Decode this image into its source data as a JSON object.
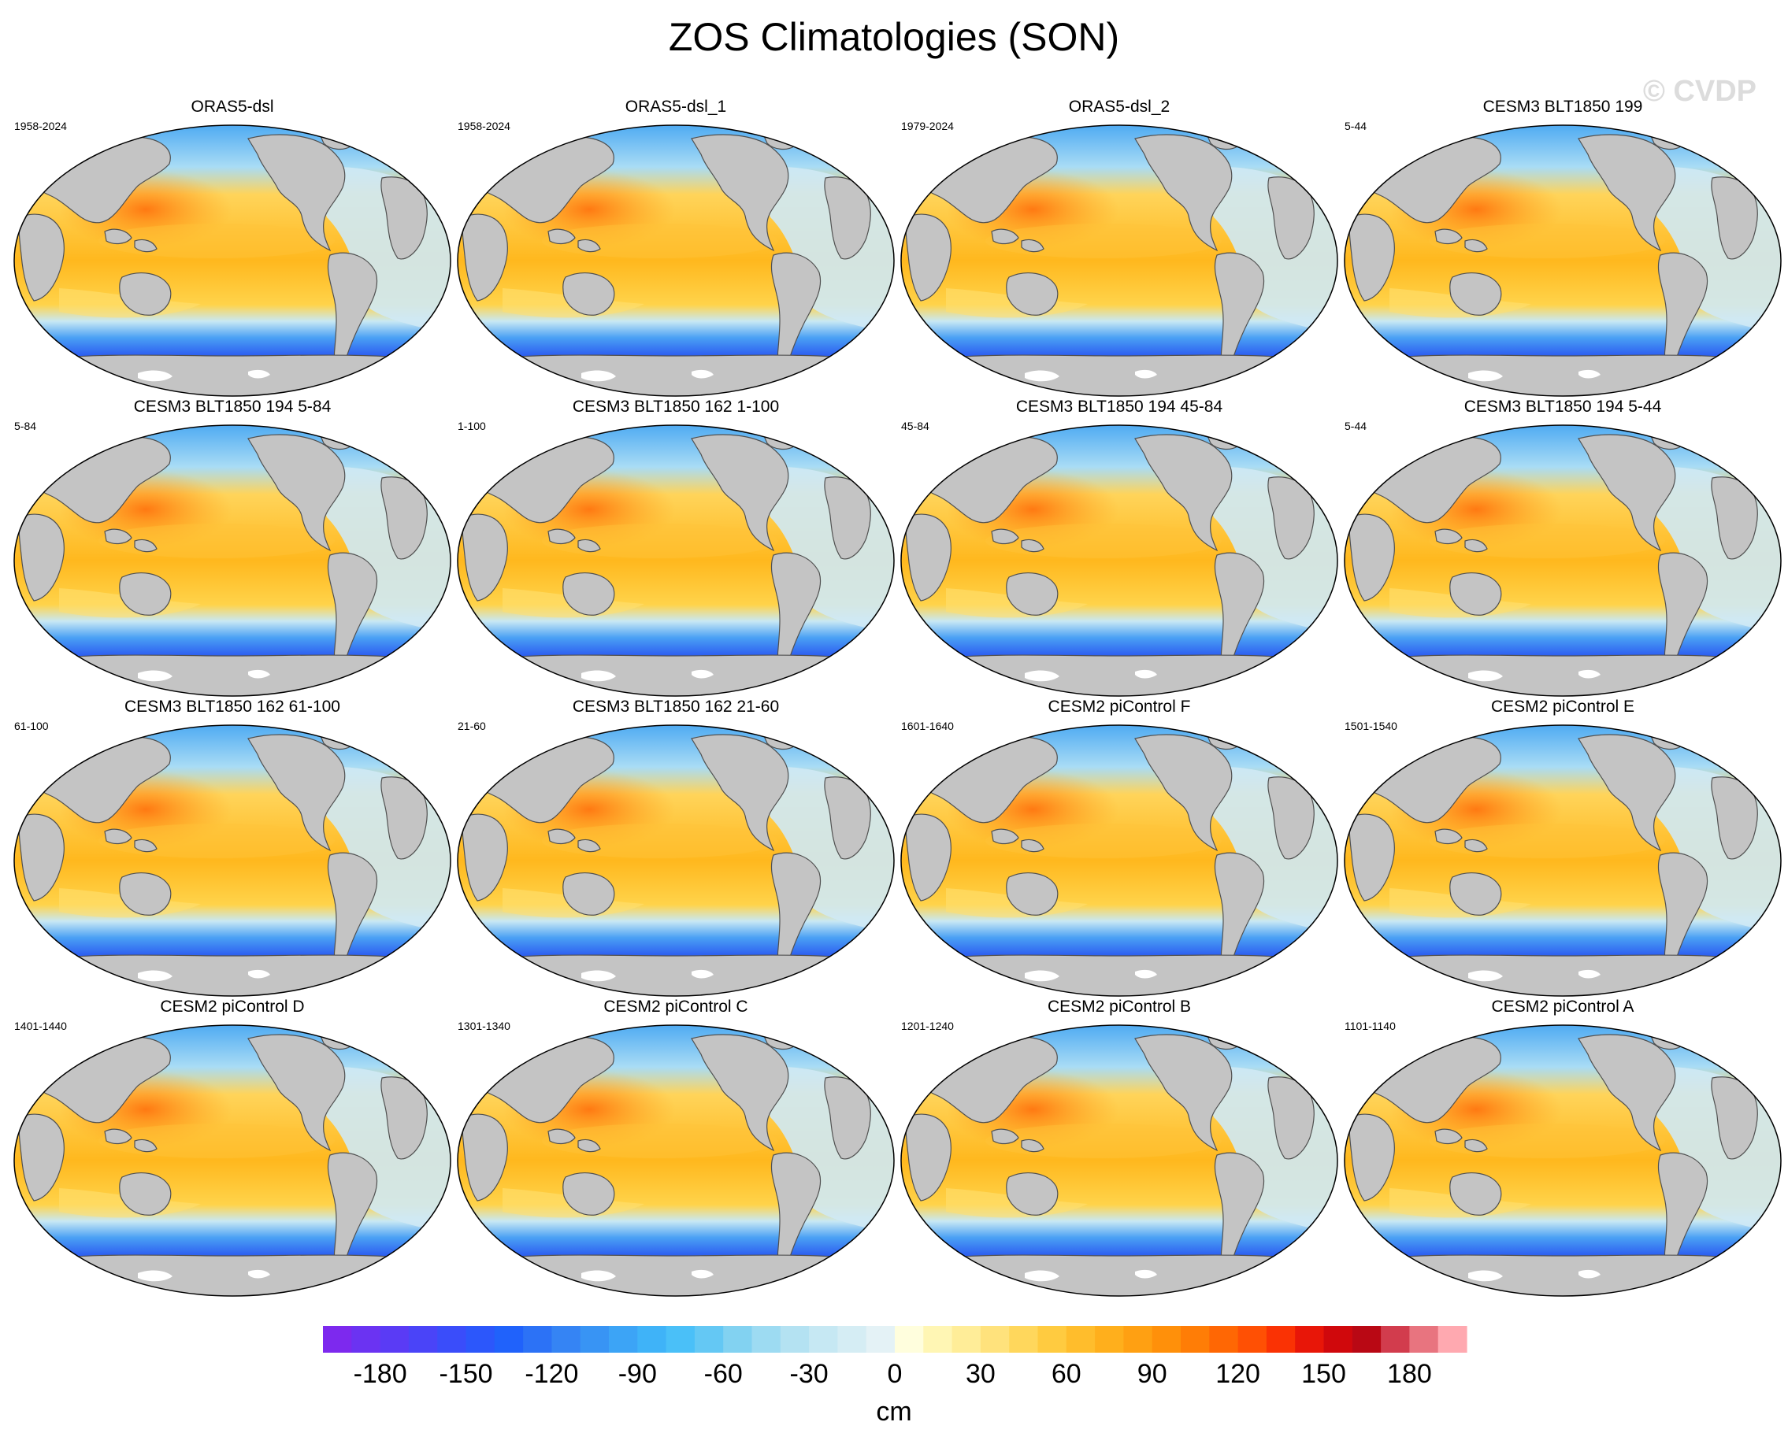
{
  "title": "ZOS Climatologies (SON)",
  "watermark": "© CVDP",
  "panels": [
    {
      "title": "ORAS5-dsl",
      "period": "1958-2024"
    },
    {
      "title": "ORAS5-dsl_1",
      "period": "1958-2024"
    },
    {
      "title": "ORAS5-dsl_2",
      "period": "1979-2024"
    },
    {
      "title": "CESM3 BLT1850 199",
      "period": "5-44"
    },
    {
      "title": "CESM3 BLT1850 194 5-84",
      "period": "5-84"
    },
    {
      "title": "CESM3 BLT1850 162 1-100",
      "period": "1-100"
    },
    {
      "title": "CESM3 BLT1850 194 45-84",
      "period": "45-84"
    },
    {
      "title": "CESM3 BLT1850 194 5-44",
      "period": "5-44"
    },
    {
      "title": "CESM3 BLT1850 162 61-100",
      "period": "61-100"
    },
    {
      "title": "CESM3 BLT1850 162 21-60",
      "period": "21-60"
    },
    {
      "title": "CESM2 piControl F",
      "period": "1601-1640"
    },
    {
      "title": "CESM2 piControl E",
      "period": "1501-1540"
    },
    {
      "title": "CESM2 piControl D",
      "period": "1401-1440"
    },
    {
      "title": "CESM2 piControl C",
      "period": "1301-1340"
    },
    {
      "title": "CESM2 piControl B",
      "period": "1201-1240"
    },
    {
      "title": "CESM2 piControl A",
      "period": "1101-1140"
    }
  ],
  "colorbar": {
    "unit": "cm",
    "min": -200,
    "max": 200,
    "step": 10,
    "tick_labels": [
      "-180",
      "-150",
      "-120",
      "-90",
      "-60",
      "-30",
      "0",
      "30",
      "60",
      "90",
      "120",
      "150",
      "180"
    ],
    "colors": [
      "#7d29ee",
      "#6b33f2",
      "#5a3bf5",
      "#4a44f8",
      "#3a4dfa",
      "#2c57fb",
      "#2062fb",
      "#2c72f6",
      "#3584f4",
      "#3894f4",
      "#3ca4f6",
      "#3fb3f8",
      "#4ac0f8",
      "#64c8f4",
      "#82d2f1",
      "#9ddbf2",
      "#b4e2f2",
      "#c6e8f3",
      "#d5edf4",
      "#e4f2f6",
      "#fffedd",
      "#fff6b4",
      "#ffed98",
      "#ffe27c",
      "#ffd75c",
      "#ffcb40",
      "#ffbd2c",
      "#ffaf1c",
      "#ffa012",
      "#ff900a",
      "#ff7d06",
      "#ff6704",
      "#ff5004",
      "#fa3204",
      "#e81608",
      "#d0080c",
      "#b90814",
      "#d23c4d",
      "#e8747f",
      "#ffa9b0"
    ]
  }
}
